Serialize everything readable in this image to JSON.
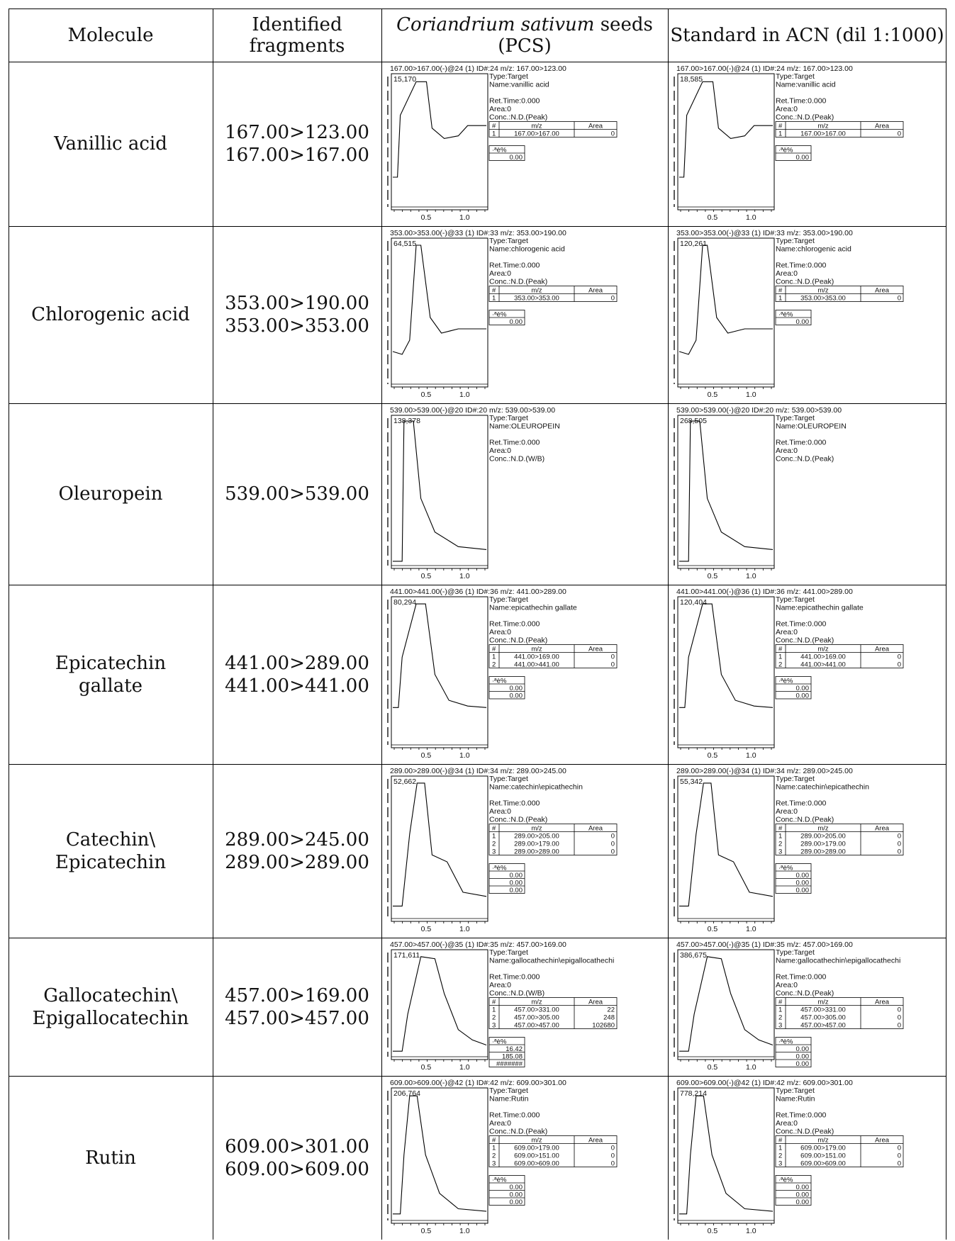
{
  "header": {
    "molecule": "Molecule",
    "fragments_line1": "Identified",
    "fragments_line2": "fragments",
    "sample_italic": "Coriandrium sativum",
    "sample_rest": " seeds",
    "sample_line2": "(PCS)",
    "standard": "Standard in ACN (dil 1:1000)"
  },
  "common": {
    "type": "Type:Target",
    "ret_time": "Ret.Time:0.000",
    "area": "Area:0",
    "col_hash": "#",
    "col_mz": "m/z",
    "col_area": "Area",
    "pct_label": "·ªè%",
    "tick_05": "0.5",
    "tick_10": "1.0"
  },
  "rows": [
    {
      "molecule": [
        "Vanillic acid"
      ],
      "fragments": [
        "167.00>123.00",
        "167.00>167.00"
      ],
      "pcs": {
        "header": "167.00>167.00(-)@24 (1) ID#:24 m/z: 167.00>123.00",
        "name": "Name:vanillic acid",
        "peak": "15,170",
        "conc": "Conc.:N.D.(Peak)",
        "table": [
          [
            "1",
            "167.00>167.00",
            "0"
          ]
        ],
        "pct": [
          "0.00"
        ]
      },
      "std": {
        "header": "167.00>167.00(-)@24 (1) ID#:24 m/z: 167.00>123.00",
        "name": "Name:vanillic acid",
        "peak": "18,585",
        "conc": "Conc.:N.D.(Peak)",
        "table": [
          [
            "1",
            "167.00>167.00",
            "0"
          ]
        ],
        "pct": [
          "0.00"
        ]
      }
    },
    {
      "molecule": [
        "Chlorogenic acid"
      ],
      "fragments": [
        "353.00>190.00",
        "353.00>353.00"
      ],
      "pcs": {
        "header": "353.00>353.00(-)@33 (1) ID#:33 m/z: 353.00>190.00",
        "name": "Name:chlorogenic acid",
        "peak": "64,515",
        "conc": "Conc.:N.D.(Peak)",
        "table": [
          [
            "1",
            "353.00>353.00",
            "0"
          ]
        ],
        "pct": [
          "0.00"
        ]
      },
      "std": {
        "header": "353.00>353.00(-)@33 (1) ID#:33 m/z: 353.00>190.00",
        "name": "Name:chlorogenic acid",
        "peak": "120,261",
        "conc": "Conc.:N.D.(Peak)",
        "table": [
          [
            "1",
            "353.00>353.00",
            "0"
          ]
        ],
        "pct": [
          "0.00"
        ]
      }
    },
    {
      "molecule": [
        "Oleuropein"
      ],
      "fragments": [
        "539.00>539.00"
      ],
      "pcs": {
        "header": "539.00>539.00(-)@20 ID#:20 m/z: 539.00>539.00",
        "name": "Name:OLEUROPEIN",
        "peak": "138,378",
        "conc": "Conc.:N.D.(W/B)",
        "table": [],
        "pct": []
      },
      "std": {
        "header": "539.00>539.00(-)@20 ID#:20 m/z: 539.00>539.00",
        "name": "Name:OLEUROPEIN",
        "peak": "268,505",
        "conc": "Conc.:N.D.(Peak)",
        "table": [],
        "pct": []
      }
    },
    {
      "molecule": [
        "Epicatechin",
        "gallate"
      ],
      "fragments": [
        "441.00>289.00",
        "441.00>441.00"
      ],
      "pcs": {
        "header": "441.00>441.00(-)@36 (1) ID#:36 m/z: 441.00>289.00",
        "name": "Name:epicathechin gallate",
        "peak": "80,294",
        "conc": "Conc.:N.D.(Peak)",
        "table": [
          [
            "1",
            "441.00>169.00",
            "0"
          ],
          [
            "2",
            "441.00>441.00",
            "0"
          ]
        ],
        "pct": [
          "0.00",
          "0.00"
        ]
      },
      "std": {
        "header": "441.00>441.00(-)@36 (1) ID#:36 m/z: 441.00>289.00",
        "name": "Name:epicathechin gallate",
        "peak": "120,404",
        "conc": "Conc.:N.D.(Peak)",
        "table": [
          [
            "1",
            "441.00>169.00",
            "0"
          ],
          [
            "2",
            "441.00>441.00",
            "0"
          ]
        ],
        "pct": [
          "0.00",
          "0.00"
        ]
      }
    },
    {
      "molecule": [
        "Catechin\\",
        "Epicatechin"
      ],
      "fragments": [
        "289.00>245.00",
        "289.00>289.00"
      ],
      "pcs": {
        "header": "289.00>289.00(-)@34 (1) ID#:34 m/z: 289.00>245.00",
        "name": "Name:catechin\\epicathechin",
        "peak": "52,662",
        "conc": "Conc.:N.D.(Peak)",
        "table": [
          [
            "1",
            "289.00>205.00",
            "0"
          ],
          [
            "2",
            "289.00>179.00",
            "0"
          ],
          [
            "3",
            "289.00>289.00",
            "0"
          ]
        ],
        "pct": [
          "0.00",
          "0.00",
          "0.00"
        ]
      },
      "std": {
        "header": "289.00>289.00(-)@34 (1) ID#:34 m/z: 289.00>245.00",
        "name": "Name:catechin\\epicathechin",
        "peak": "55,342",
        "conc": "Conc.:N.D.(Peak)",
        "table": [
          [
            "1",
            "289.00>205.00",
            "0"
          ],
          [
            "2",
            "289.00>179.00",
            "0"
          ],
          [
            "3",
            "289.00>289.00",
            "0"
          ]
        ],
        "pct": [
          "0.00",
          "0.00",
          "0.00"
        ]
      }
    },
    {
      "molecule": [
        "Gallocatechin\\",
        "Epigallocatechin"
      ],
      "fragments": [
        "457.00>169.00",
        "457.00>457.00"
      ],
      "pcs": {
        "header": "457.00>457.00(-)@35 (1) ID#:35 m/z: 457.00>169.00",
        "name": "Name:gallocathechin\\epigallocathechi",
        "peak": "171,611",
        "conc": "Conc.:N.D.(W/B)",
        "table": [
          [
            "1",
            "457.00>331.00",
            "22"
          ],
          [
            "2",
            "457.00>305.00",
            "248"
          ],
          [
            "3",
            "457.00>457.00",
            "102680"
          ]
        ],
        "pct": [
          "16.42",
          "185.08",
          "#######"
        ]
      },
      "std": {
        "header": "457.00>457.00(-)@35 (1) ID#:35 m/z: 457.00>169.00",
        "name": "Name:gallocathechin\\epigallocathechi",
        "peak": "386,675",
        "conc": "Conc.:N.D.(Peak)",
        "table": [
          [
            "1",
            "457.00>331.00",
            "0"
          ],
          [
            "2",
            "457.00>305.00",
            "0"
          ],
          [
            "3",
            "457.00>457.00",
            "0"
          ]
        ],
        "pct": [
          "0.00",
          "0.00",
          "0.00"
        ]
      }
    },
    {
      "molecule": [
        "Rutin"
      ],
      "fragments": [
        "609.00>301.00",
        "609.00>609.00"
      ],
      "pcs": {
        "header": "609.00>609.00(-)@42 (1) ID#:42 m/z: 609.00>301.00",
        "name": "Name:Rutin",
        "peak": "206,764",
        "conc": "Conc.:N.D.(Peak)",
        "table": [
          [
            "1",
            "609.00>179.00",
            "0"
          ],
          [
            "2",
            "609.00>151.00",
            "0"
          ],
          [
            "3",
            "609.00>609.00",
            "0"
          ]
        ],
        "pct": [
          "0.00",
          "0.00",
          "0.00"
        ]
      },
      "std": {
        "header": "609.00>609.00(-)@42 (1) ID#:42 m/z: 609.00>301.00",
        "name": "Name:Rutin",
        "peak": "778,214",
        "conc": "Conc.:N.D.(Peak)",
        "table": [
          [
            "1",
            "609.00>179.00",
            "0"
          ],
          [
            "2",
            "609.00>151.00",
            "0"
          ],
          [
            "3",
            "609.00>609.00",
            "0"
          ]
        ],
        "pct": [
          "0.00",
          "0.00",
          "0.00"
        ]
      }
    }
  ]
}
